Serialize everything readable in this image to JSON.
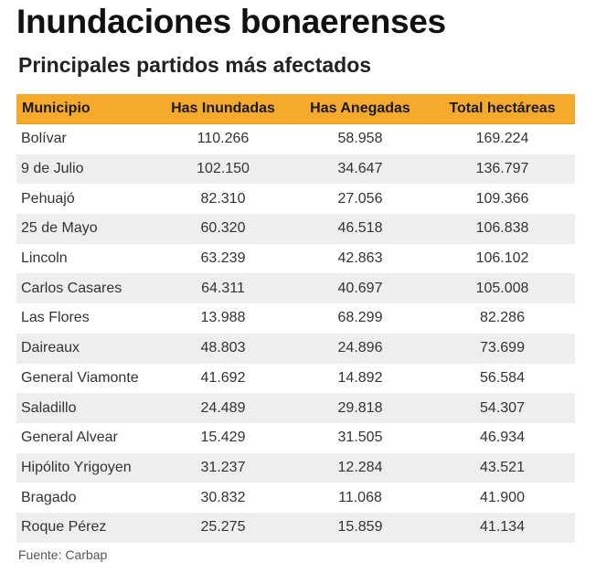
{
  "title": "Inundaciones bonaerenses",
  "subtitle": "Principales partidos más afectados",
  "source": "Fuente: Carbap",
  "colors": {
    "header_bg": "#f5aa2c",
    "stripe_bg": "#eeeeee"
  },
  "chart_data": {
    "type": "table",
    "columns": [
      "Municipio",
      "Has Inundadas",
      "Has Anegadas",
      "Total hectáreas"
    ],
    "rows": [
      [
        "Bolívar",
        "110.266",
        "58.958",
        "169.224"
      ],
      [
        "9 de Julio",
        "102.150",
        "34.647",
        "136.797"
      ],
      [
        "Pehuajó",
        "82.310",
        "27.056",
        "109.366"
      ],
      [
        "25 de Mayo",
        "60.320",
        "46.518",
        "106.838"
      ],
      [
        "Lincoln",
        "63.239",
        "42.863",
        "106.102"
      ],
      [
        "Carlos Casares",
        "64.311",
        "40.697",
        "105.008"
      ],
      [
        "Las Flores",
        "13.988",
        "68.299",
        "82.286"
      ],
      [
        "Daireaux",
        "48.803",
        "24.896",
        "73.699"
      ],
      [
        "General Viamonte",
        "41.692",
        "14.892",
        "56.584"
      ],
      [
        "Saladillo",
        "24.489",
        "29.818",
        "54.307"
      ],
      [
        "General Alvear",
        "15.429",
        "31.505",
        "46.934"
      ],
      [
        "Hipólito Yrigoyen",
        "31.237",
        "12.284",
        "43.521"
      ],
      [
        "Bragado",
        "30.832",
        "11.068",
        "41.900"
      ],
      [
        "Roque Pérez",
        "25.275",
        "15.859",
        "41.134"
      ]
    ]
  }
}
